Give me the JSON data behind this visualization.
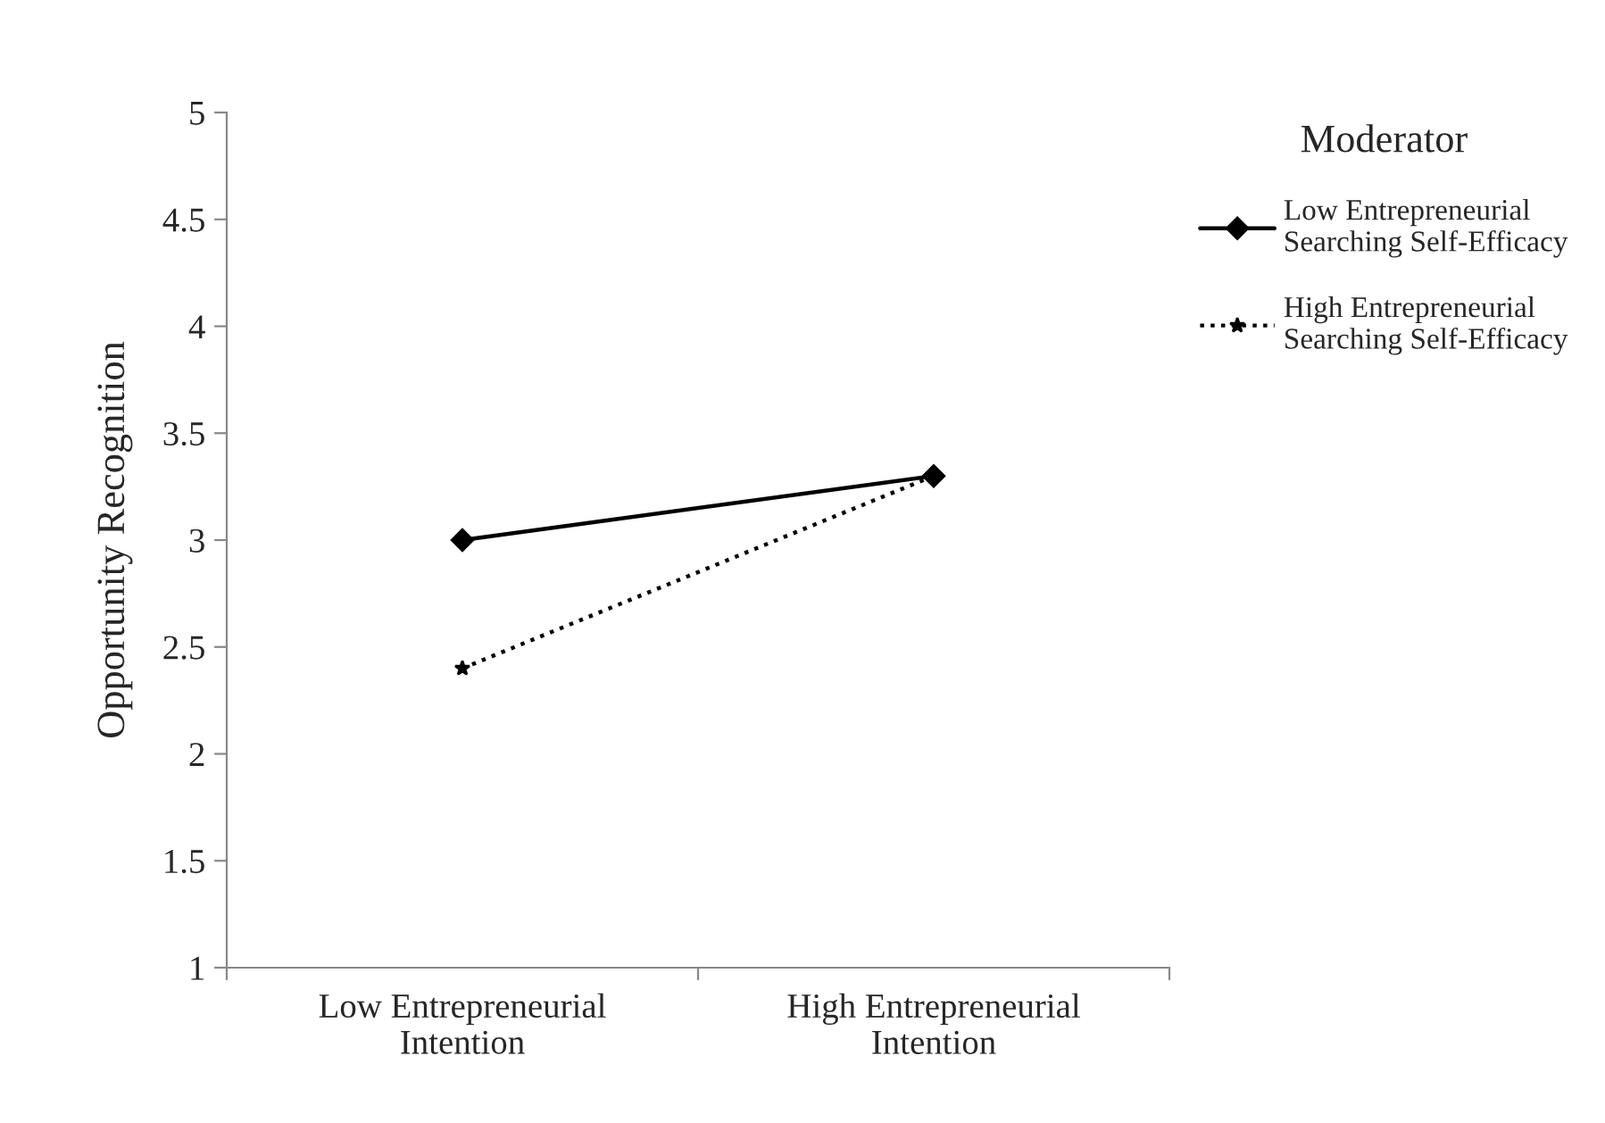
{
  "chart_data": {
    "type": "line",
    "ylabel": "Opportunity Recognition",
    "legend_title": "Moderator",
    "categories": [
      "Low Entrepreneurial\nIntention",
      "High Entrepreneurial\nIntention"
    ],
    "series": [
      {
        "name": "Low Entrepreneurial\nSearching Self-Efficacy",
        "color": "#000000",
        "values": [
          3.0,
          3.3
        ],
        "marker": "diamond",
        "line_style": "solid"
      },
      {
        "name": "High Entrepreneurial\nSearching Self-Efficacy",
        "color": "#000000",
        "values": [
          2.4,
          3.3
        ],
        "marker": "star",
        "line_style": "dotted"
      }
    ],
    "ylim": [
      1,
      5
    ],
    "yticks": [
      1,
      1.5,
      2,
      2.5,
      3,
      3.5,
      4,
      4.5,
      5
    ],
    "grid": false,
    "legend": "right"
  }
}
